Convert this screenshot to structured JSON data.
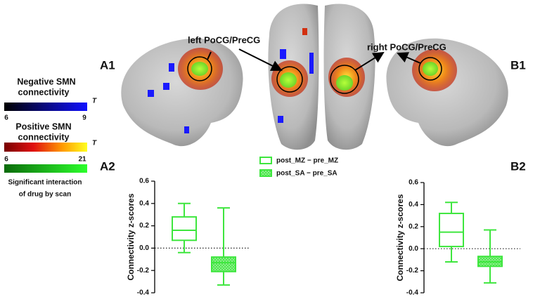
{
  "figure": {
    "panels": [
      "A1",
      "B1"
    ],
    "callouts": [
      "left PoCG/PreCG",
      "right PoCG/PreCG"
    ],
    "colorbars": [
      {
        "title": [
          "Negative SMN",
          "connectivity"
        ],
        "min": 6,
        "max": 9,
        "unit": "T"
      },
      {
        "title": [
          "Positive SMN",
          "connectivity"
        ],
        "min": 6,
        "max": 21,
        "unit": "T"
      }
    ],
    "interaction_label": [
      "Significant interaction",
      "of drug by scan"
    ]
  },
  "chart_data": [
    {
      "type": "box",
      "panel_label": "A2",
      "y_label": "Connectivity z-scores",
      "ylim": [
        -0.4,
        0.6
      ],
      "yticks": [
        -0.4,
        -0.2,
        {
          "value": 0,
          "label": "0.0"
        },
        0.2,
        0.4,
        0.6
      ],
      "reference_line": 0,
      "series": [
        {
          "name": "post_MZ − pre_MZ",
          "color": "#3ee63e",
          "fill": "none",
          "min": -0.04,
          "q1": 0.07,
          "median": 0.16,
          "q3": 0.28,
          "max": 0.4
        },
        {
          "name": "post_SA − pre_SA",
          "color": "#3ee63e",
          "fill": "hatch",
          "min": -0.33,
          "q1": -0.21,
          "median": -0.13,
          "q3": -0.08,
          "max": 0.36
        }
      ]
    },
    {
      "type": "box",
      "panel_label": "B2",
      "y_label": "Connectivity z-scores",
      "ylim": [
        -0.4,
        0.6
      ],
      "yticks": [
        -0.4,
        -0.2,
        {
          "value": 0,
          "label": "0.0"
        },
        0.2,
        0.4,
        0.6
      ],
      "reference_line": 0,
      "series": [
        {
          "color": "#3ee63e",
          "fill": "none",
          "min": -0.12,
          "q1": 0.02,
          "median": 0.15,
          "q3": 0.32,
          "max": 0.42
        },
        {
          "color": "#3ee63e",
          "fill": "hatch",
          "min": -0.31,
          "q1": -0.16,
          "median": -0.12,
          "q3": -0.07,
          "max": 0.17
        }
      ]
    }
  ]
}
